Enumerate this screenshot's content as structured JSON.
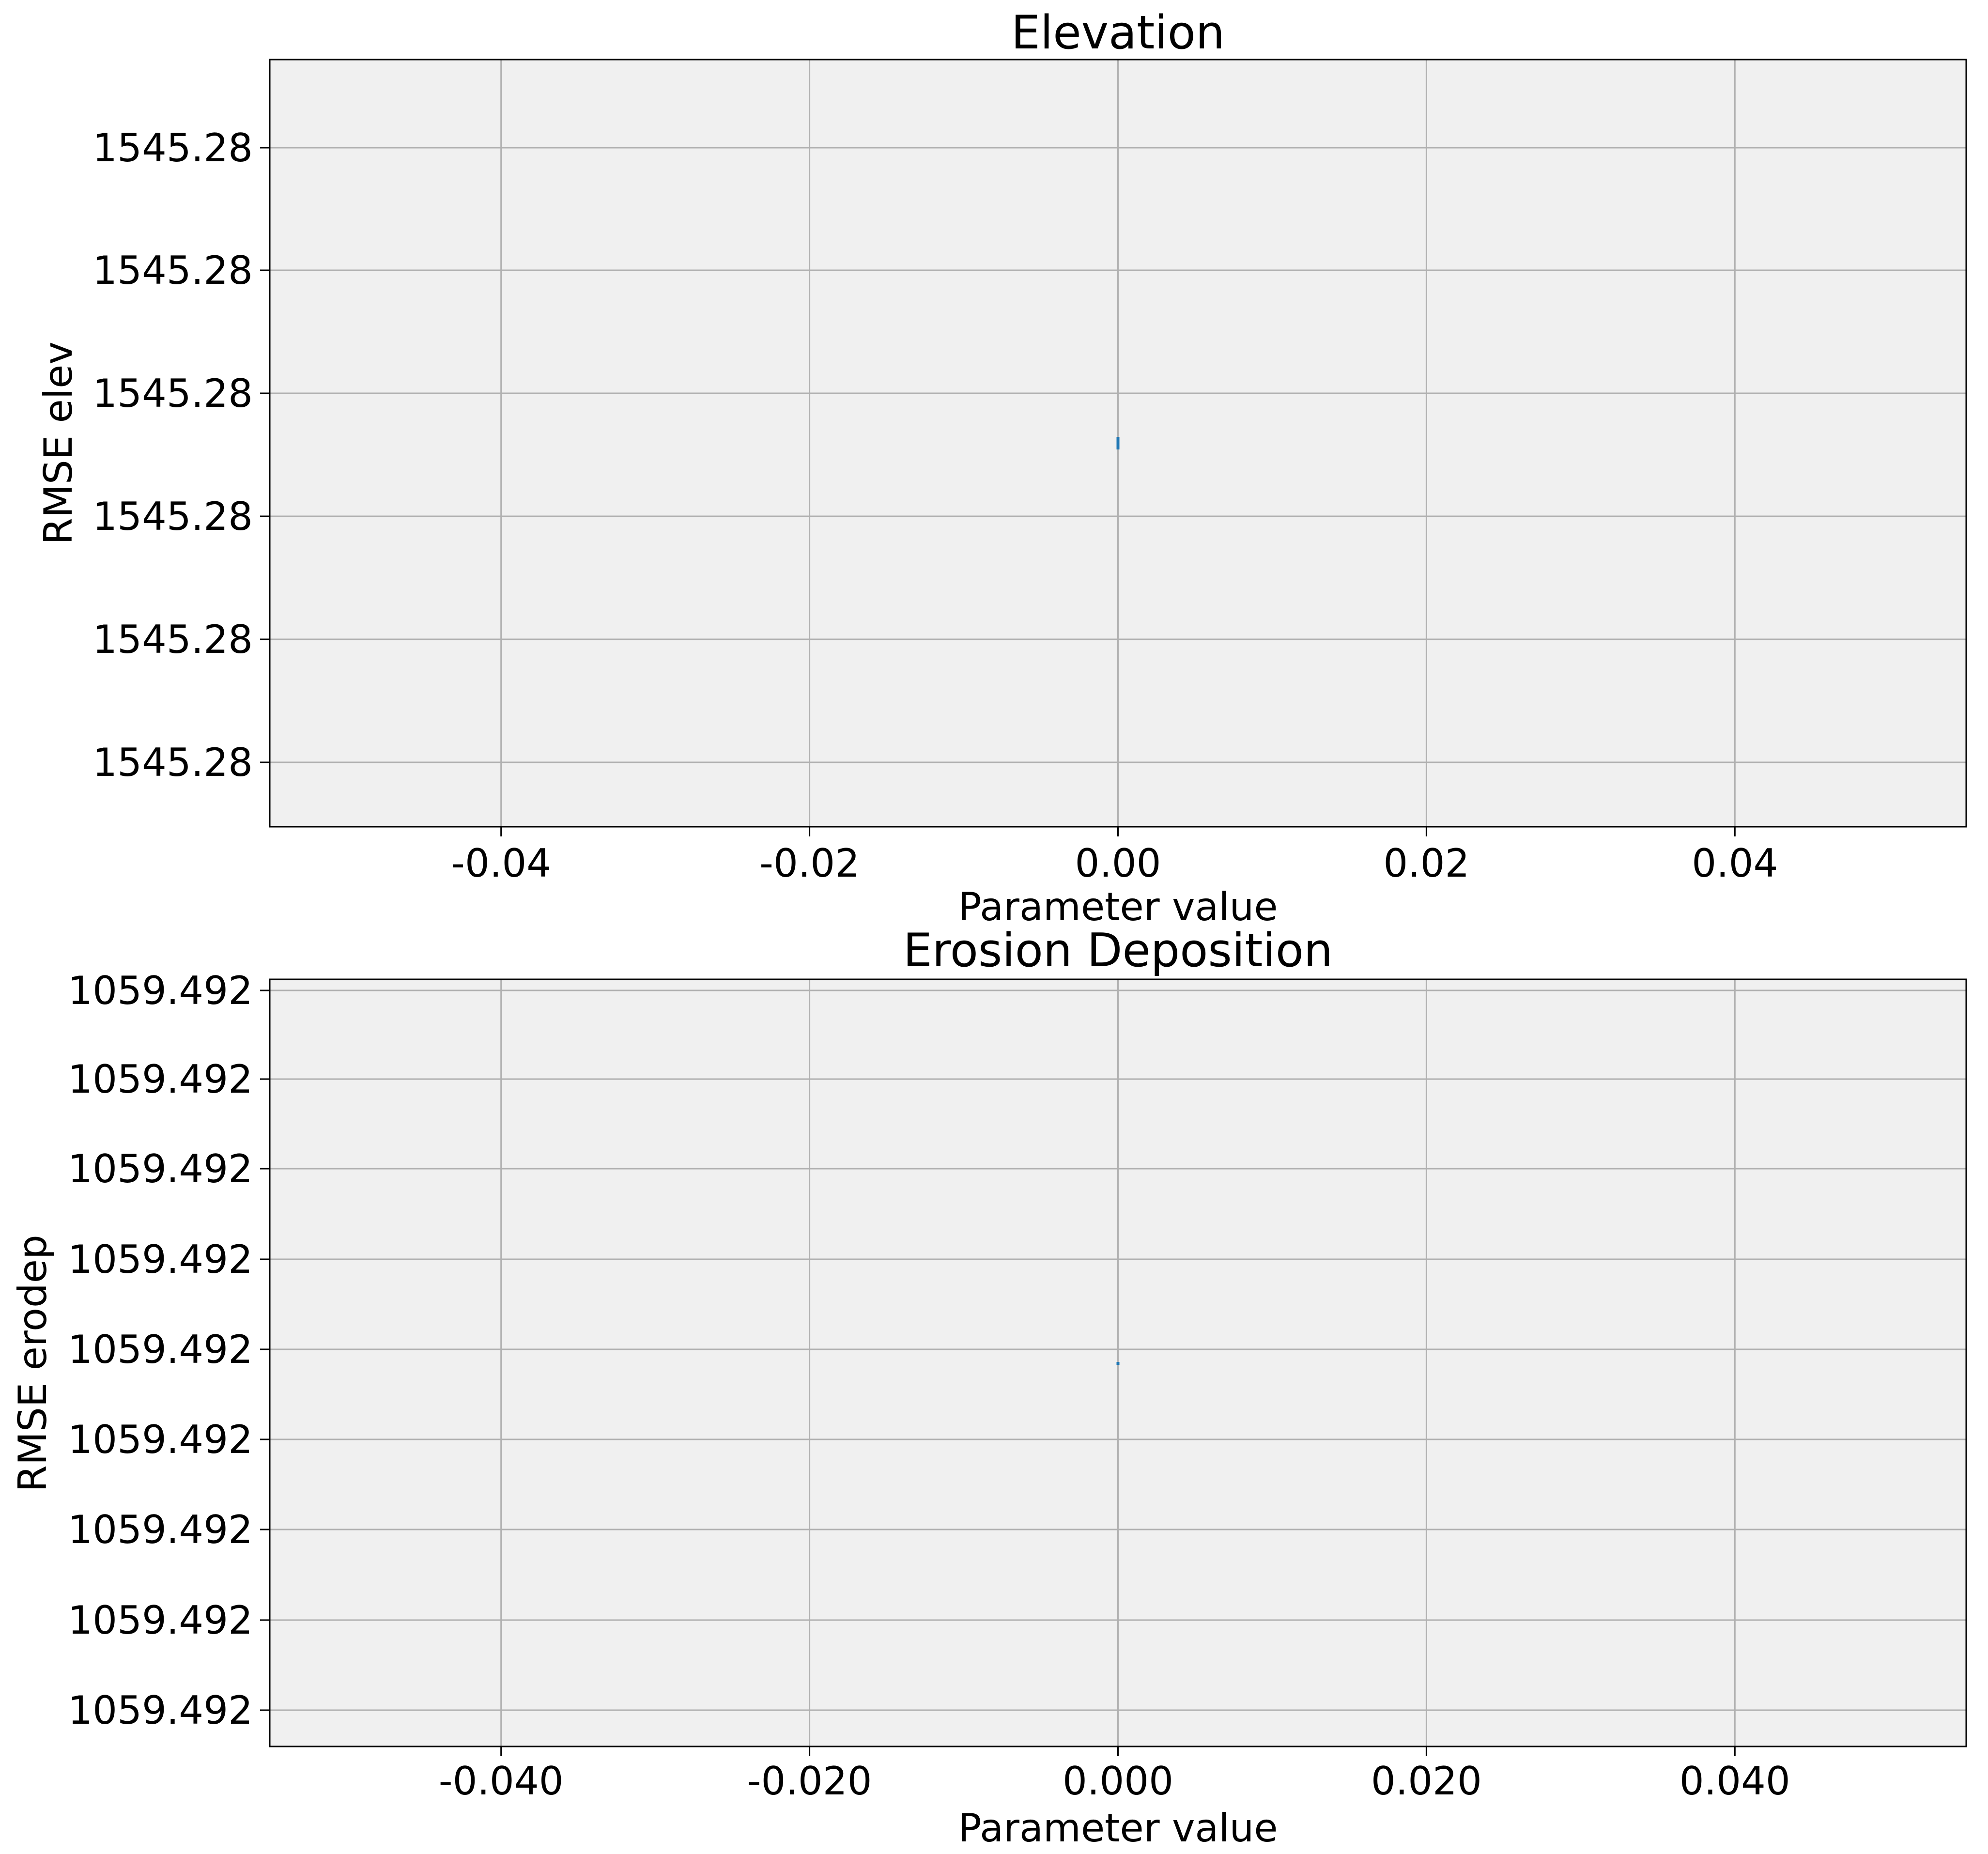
{
  "chart_data": [
    {
      "type": "scatter",
      "title": "Elevation",
      "xlabel": "Parameter value",
      "ylabel": "RMSE elev",
      "xlim": [
        -0.055,
        0.055
      ],
      "x_ticks": [
        -0.04,
        -0.02,
        0.0,
        0.02,
        0.04
      ],
      "x_tick_labels": [
        "-0.04",
        "-0.02",
        "0.00",
        "0.02",
        "0.04"
      ],
      "y_tick_labels": [
        "1545.28",
        "1545.28",
        "1545.28",
        "1545.28",
        "1545.28",
        "1545.28"
      ],
      "grid": true,
      "background_color": "#f0f0f0",
      "series_color": "#1f77b4",
      "series": [
        {
          "x": [
            0.0
          ],
          "y": [
            1545.28
          ]
        }
      ]
    },
    {
      "type": "scatter",
      "title": "Erosion Deposition",
      "xlabel": "Parameter value",
      "ylabel": "RMSE erodep",
      "xlim": [
        -0.055,
        0.055
      ],
      "x_ticks": [
        -0.04,
        -0.02,
        0.0,
        0.02,
        0.04
      ],
      "x_tick_labels": [
        "-0.040",
        "-0.020",
        "0.000",
        "0.020",
        "0.040"
      ],
      "y_tick_labels": [
        "1059.492",
        "1059.492",
        "1059.492",
        "1059.492",
        "1059.492",
        "1059.492",
        "1059.492",
        "1059.492",
        "1059.492"
      ],
      "grid": true,
      "background_color": "#f0f0f0",
      "series_color": "#1f77b4",
      "series": [
        {
          "x": [
            0.0
          ],
          "y": [
            1059.492
          ]
        }
      ]
    }
  ]
}
